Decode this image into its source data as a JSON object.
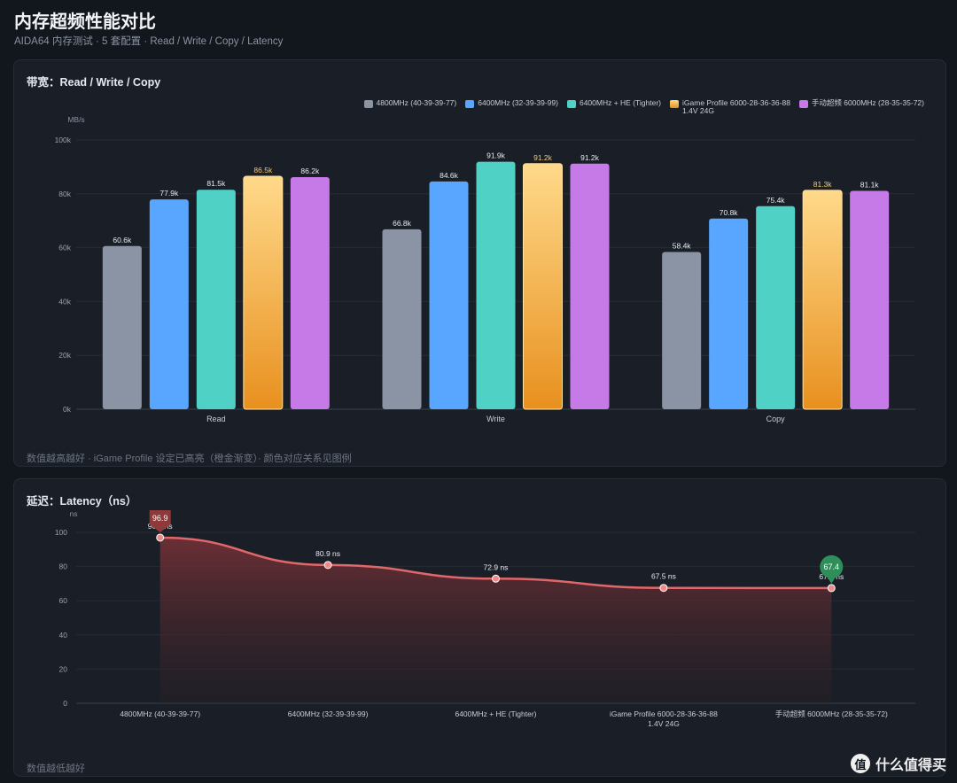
{
  "page": {
    "title": "内存超频性能对比",
    "subtitle": "AIDA64 内存测试 · 5 套配置 · Read / Write / Copy / Latency"
  },
  "bandwidth_panel": {
    "title": "带宽：Read / Write / Copy",
    "note": "数值越高越好 · iGame Profile 设定已高亮（橙金渐变）· 颜色对应关系见图例"
  },
  "latency_panel": {
    "title": "延迟：Latency（ns）",
    "note": "数值越低越好"
  },
  "watermark": {
    "text": "什么值得买",
    "logo": "值"
  },
  "colors": {
    "gray": "#8b94a5",
    "blue": "#58a6ff",
    "teal": "#4fd1c5",
    "gold_top": "#ffd98a",
    "gold_bottom": "#e8901f",
    "purple": "#c57ae8",
    "line": "#e0676a",
    "best": "#2f8f5b",
    "worst": "#8e3a3a"
  },
  "chart_data": [
    {
      "type": "bar",
      "ylabel": "MB/s",
      "ylim": [
        0,
        100000
      ],
      "yticks": [
        "0k",
        "20k",
        "40k",
        "60k",
        "80k",
        "100k"
      ],
      "categories": [
        "Read",
        "Write",
        "Copy"
      ],
      "legend_position": "top-right",
      "series": [
        {
          "name": "4800MHz (40-39-39-77)",
          "color": "gray",
          "values": [
            60600,
            66800,
            58400
          ],
          "labels": [
            "60.6k",
            "66.8k",
            "58.4k"
          ]
        },
        {
          "name": "6400MHz (32-39-39-99)",
          "color": "blue",
          "values": [
            77900,
            84600,
            70800
          ],
          "labels": [
            "77.9k",
            "84.6k",
            "70.8k"
          ]
        },
        {
          "name": "6400MHz + HE (Tighter)",
          "color": "teal",
          "values": [
            81500,
            91900,
            75400
          ],
          "labels": [
            "81.5k",
            "91.9k",
            "75.4k"
          ]
        },
        {
          "name": "iGame Profile 6000-28-36-36-88\n1.4V 24G",
          "color": "gold",
          "values": [
            86500,
            91200,
            81300
          ],
          "labels": [
            "86.5k",
            "91.2k",
            "81.3k"
          ],
          "highlight": true
        },
        {
          "name": "手动超频 6000MHz (28-35-35-72)",
          "color": "purple",
          "values": [
            86200,
            91200,
            81100
          ],
          "labels": [
            "86.2k",
            "91.2k",
            "81.1k"
          ]
        }
      ]
    },
    {
      "type": "area",
      "ylabel": "ns",
      "ylim": [
        0,
        100
      ],
      "yticks": [
        "0",
        "20",
        "40",
        "60",
        "80",
        "100"
      ],
      "categories": [
        "4800MHz (40-39-39-77)",
        "6400MHz (32-39-39-99)",
        "6400MHz + HE (Tighter)",
        "iGame Profile 6000-28-36-36-88\n1.4V 24G",
        "手动超频 6000MHz (28-35-35-72)"
      ],
      "values": [
        96.9,
        80.9,
        72.9,
        67.5,
        67.4
      ],
      "labels": [
        "96.9 ns",
        "80.9 ns",
        "72.9 ns",
        "67.5 ns",
        "67.4 ns"
      ],
      "markers": {
        "max": "96.9",
        "min": "67.4"
      }
    }
  ]
}
